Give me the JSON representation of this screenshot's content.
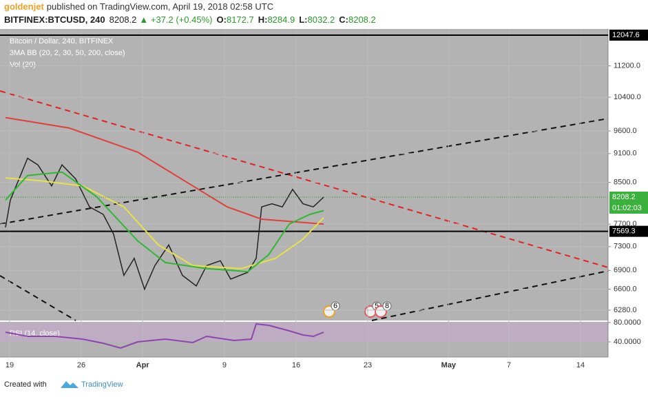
{
  "header": {
    "author": "goldenjet",
    "published": "published on TradingView.com, April 19, 2018 02:58 UTC",
    "symbol": "BITFINEX:BTCUSD, 240",
    "last": "8208.2",
    "change": "▲ +37.2 (+0.45%)",
    "ohlc": [
      [
        "O:",
        "8172.7"
      ],
      [
        "H:",
        "8284.9"
      ],
      [
        "L:",
        "8032.2"
      ],
      [
        "C:",
        "8208.2"
      ]
    ]
  },
  "legend": [
    "Bitcoin / Dollar, 240, BITFINEX",
    "3MA BB (20, 2, 30, 50, 200, close)",
    "Vol (20)"
  ],
  "events": [
    "6",
    "5",
    "8"
  ],
  "countdown": "01:02:03",
  "footer": {
    "created": "Created with",
    "brand": "TradingView"
  },
  "chart_data": [
    {
      "type": "line",
      "log": true,
      "ylim": [
        6128,
        12225
      ],
      "xlim": [
        -0.94,
        58.49
      ],
      "yticks": [
        {
          "value": 6280,
          "label": "6280.0"
        },
        {
          "value": 6600,
          "label": "6600.0"
        },
        {
          "value": 6900,
          "label": "6900.0"
        },
        {
          "value": 7300,
          "label": "7300.0"
        },
        {
          "value": 7700,
          "label": "7700.0"
        },
        {
          "value": 8500,
          "label": "8500.0"
        },
        {
          "value": 9100,
          "label": "9100.0"
        },
        {
          "value": 9600,
          "label": "9600.0"
        },
        {
          "value": 10400,
          "label": "10400.0"
        },
        {
          "value": 11200,
          "label": "11200.0"
        }
      ],
      "xticks": [
        {
          "value": 0,
          "label": "19"
        },
        {
          "value": 7,
          "label": "26"
        },
        {
          "value": 13,
          "label": "Apr"
        },
        {
          "value": 21,
          "label": "9"
        },
        {
          "value": 28,
          "label": "16"
        },
        {
          "value": 35,
          "label": "23"
        },
        {
          "value": 42.9,
          "label": "May"
        },
        {
          "value": 48.8,
          "label": "7"
        },
        {
          "value": 55.8,
          "label": "14"
        }
      ],
      "levels": [
        12047.6,
        7569.3
      ],
      "grid": true,
      "series": [
        {
          "color": "#222222",
          "x": [
            -0.4,
            0.07,
            1.75,
            2.76,
            4.11,
            5.12,
            6.46,
            7.81,
            9.15,
            10.16,
            11.17,
            12.18,
            13.19,
            14.2,
            15.55,
            16.89,
            18.24,
            19.25,
            20.6,
            21.61,
            23.29,
            24.1,
            24.63,
            25.64,
            26.65,
            27.66,
            28.67,
            29.68,
            30.69
          ],
          "values": [
            7640,
            8150,
            9000,
            8860,
            8430,
            8860,
            8570,
            8020,
            7880,
            7520,
            6820,
            7100,
            6600,
            6980,
            7330,
            6820,
            6650,
            6980,
            7060,
            6760,
            6870,
            7100,
            8020,
            8080,
            8020,
            8360,
            8080,
            8020,
            8208.2
          ]
        },
        {
          "color": "#e0403a",
          "x": [
            -0.4,
            5.79,
            12.52,
            17.9,
            21.27,
            24.63,
            30.69
          ],
          "values": [
            9910,
            9670,
            9130,
            8430,
            8020,
            7790,
            7700
          ]
        },
        {
          "color": "#e8e04a",
          "x": [
            -0.4,
            3.1,
            7.13,
            11.17,
            14.54,
            17.9,
            22.62,
            25.98,
            28.67,
            30.69
          ],
          "values": [
            8590,
            8530,
            8430,
            8020,
            7330,
            6980,
            6930,
            7100,
            7430,
            7820
          ]
        },
        {
          "color": "#2fb82f",
          "x": [
            -0.4,
            1.75,
            5.12,
            8.48,
            12.52,
            15.21,
            19.25,
            23.29,
            25.31,
            27.33,
            29.35,
            30.69
          ],
          "values": [
            8150,
            8640,
            8710,
            8220,
            7400,
            7030,
            6930,
            6880,
            7160,
            7700,
            7880,
            7950
          ]
        }
      ]
    },
    {
      "type": "line",
      "title": "RSI (14, close)",
      "ylim": [
        8.6,
        81.4
      ],
      "xlim": [
        -0.94,
        58.49
      ],
      "yticks": [
        {
          "value": 80,
          "label": "80.0000"
        },
        {
          "value": 40,
          "label": "40.0000"
        }
      ],
      "series": [
        {
          "color": "#8e44ad",
          "x": [
            -0.4,
            1.75,
            4.44,
            7.13,
            9.15,
            10.84,
            12.52,
            15.21,
            17.9,
            19.25,
            21.94,
            23.62,
            24.1,
            25.31,
            27.33,
            28.67,
            29.68,
            30.69
          ],
          "values": [
            60,
            51.4,
            51.4,
            45.7,
            37.1,
            27.1,
            40,
            45.7,
            38.6,
            51.4,
            42.9,
            45.7,
            77.1,
            74.3,
            62.9,
            54.3,
            51.4,
            60
          ]
        }
      ]
    }
  ]
}
